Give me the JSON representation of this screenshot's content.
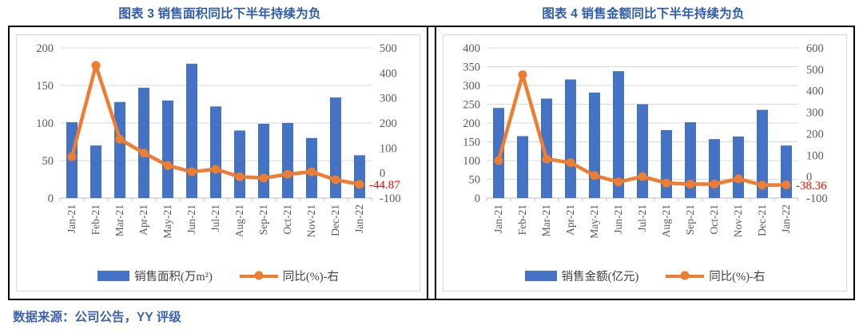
{
  "source_note": "数据来源：公司公告，YY 评级",
  "colors": {
    "bar": "#4472C4",
    "line": "#ED7D31",
    "grid": "#D9D9D9",
    "axis_text": "#595959",
    "axis_line": "#BFBFBF",
    "title": "#2F5CA8",
    "source": "#3C62AE",
    "annotation": "#FF0000",
    "frame_border": "#D9D9D9",
    "table_border": "#000000"
  },
  "chart_data": [
    {
      "type": "bar+line",
      "title": "图表 3 销售面积同比下半年持续为负",
      "categories": [
        "Jan-21",
        "Feb-21",
        "Mar-21",
        "Apr-21",
        "May-21",
        "Jun-21",
        "Jul-21",
        "Aug-21",
        "Sep-21",
        "Oct-21",
        "Nov-21",
        "Dec-21",
        "Jan-22"
      ],
      "series": [
        {
          "name": "销售面积(万m²)",
          "type": "bar",
          "axis": "left",
          "values": [
            101,
            70,
            128,
            147,
            130,
            179,
            122,
            90,
            99,
            100,
            80,
            134,
            57
          ]
        },
        {
          "name": "同比(%)-右",
          "type": "line",
          "axis": "right",
          "values": [
            65,
            430,
            135,
            80,
            30,
            5,
            15,
            -15,
            -20,
            -5,
            5,
            -27,
            -44.87
          ]
        }
      ],
      "left_axis": {
        "min": 0,
        "max": 200,
        "step": 50,
        "ticks": [
          0,
          50,
          100,
          150,
          200
        ]
      },
      "right_axis": {
        "min": -100,
        "max": 500,
        "step": 100,
        "ticks": [
          -100,
          0,
          100,
          200,
          300,
          400,
          500
        ]
      },
      "annotation": {
        "text": "-44.87",
        "point_index": 12
      },
      "grid": true,
      "legend_position": "bottom"
    },
    {
      "type": "bar+line",
      "title": "图表 4 销售金额同比下半年持续为负",
      "categories": [
        "Jan-21",
        "Feb-21",
        "Mar-21",
        "Apr-21",
        "May-21",
        "Jun-21",
        "Jul-21",
        "Aug-21",
        "Sep-21",
        "Oct-21",
        "Nov-21",
        "Dec-21",
        "Jan-22"
      ],
      "series": [
        {
          "name": "销售金额(亿元)",
          "type": "bar",
          "axis": "left",
          "values": [
            240,
            165,
            265,
            316,
            281,
            338,
            250,
            181,
            202,
            157,
            164,
            235,
            140
          ]
        },
        {
          "name": "同比(%)-右",
          "type": "line",
          "axis": "right",
          "values": [
            75,
            475,
            82,
            65,
            5,
            -25,
            0,
            -30,
            -35,
            -35,
            -10,
            -40,
            -38.36
          ]
        }
      ],
      "left_axis": {
        "min": 0,
        "max": 400,
        "step": 50,
        "ticks": [
          0,
          50,
          100,
          150,
          200,
          250,
          300,
          350,
          400
        ]
      },
      "right_axis": {
        "min": -100,
        "max": 600,
        "step": 100,
        "ticks": [
          -100,
          0,
          100,
          200,
          300,
          400,
          500,
          600
        ]
      },
      "annotation": {
        "text": "-38.36",
        "point_index": 12
      },
      "grid": true,
      "legend_position": "bottom"
    }
  ]
}
